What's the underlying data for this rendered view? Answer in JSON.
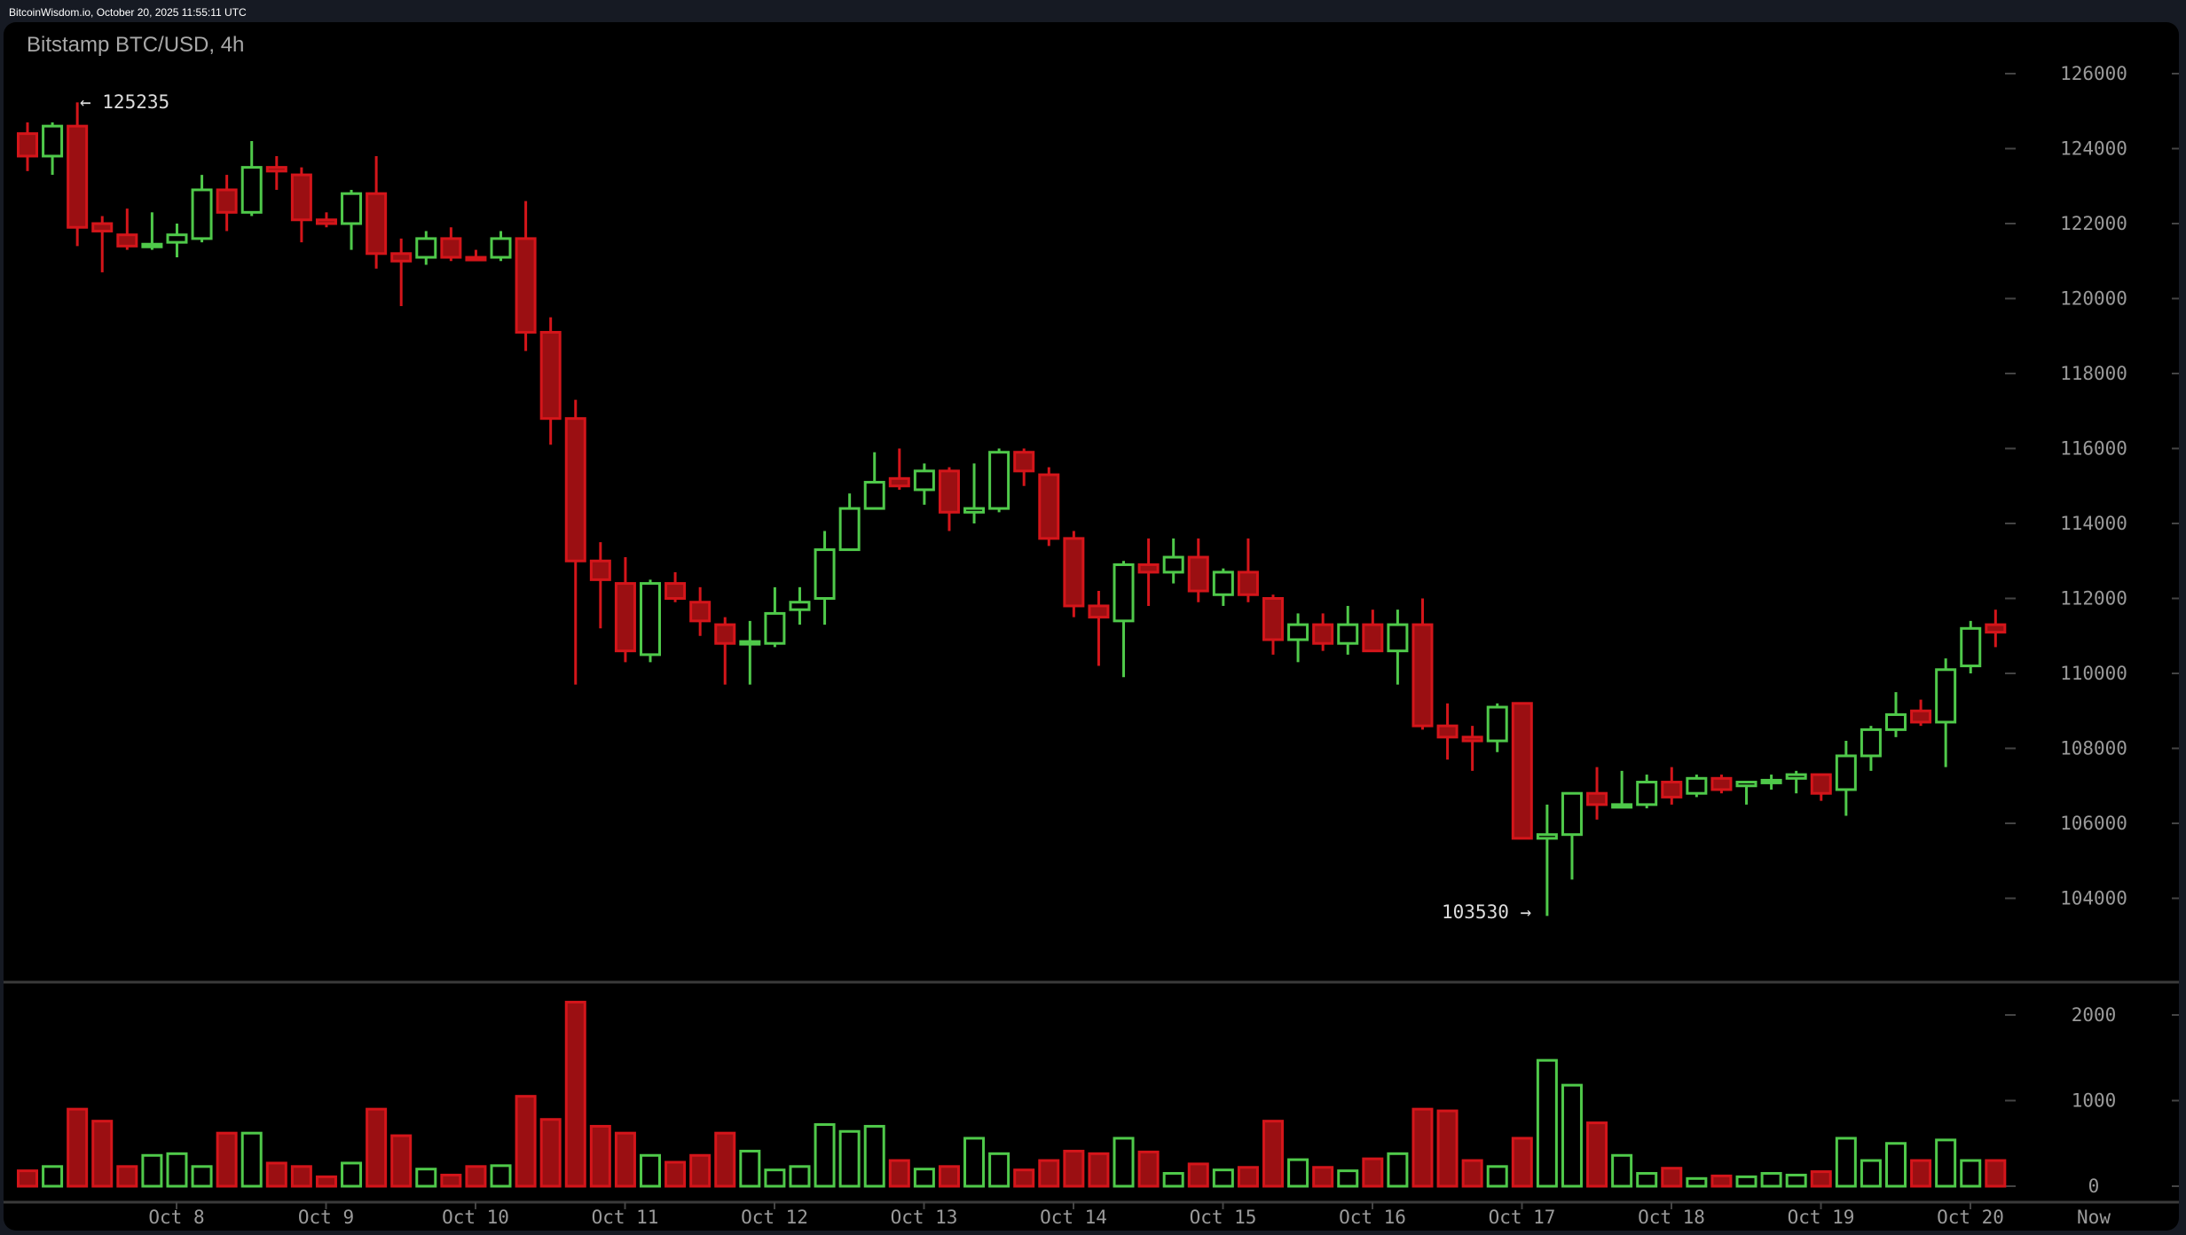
{
  "header": {
    "source_line": "BitcoinWisdom.io, October 20, 2025 11:55:11 UTC"
  },
  "chart": {
    "title": "Bitstamp BTC/USD, 4h",
    "high_annotation": "← 125235",
    "low_annotation": "103530 →",
    "price_axis_labels": [
      "126000",
      "124000",
      "122000",
      "120000",
      "118000",
      "116000",
      "114000",
      "112000",
      "110000",
      "108000",
      "106000",
      "104000"
    ],
    "volume_axis_labels": [
      "2000",
      "1000",
      "0"
    ],
    "date_labels": [
      "Oct 8",
      "Oct 9",
      "Oct 10",
      "Oct 11",
      "Oct 12",
      "Oct 13",
      "Oct 14",
      "Oct 15",
      "Oct 16",
      "Oct 17",
      "Oct 18",
      "Oct 19",
      "Oct 20",
      "Now"
    ]
  },
  "colors": {
    "up": "#4fc94a",
    "down_fill": "#9b0f12",
    "down_stroke": "#d4151a",
    "frame": "#161a23",
    "panel": "#000000",
    "axis_text": "#9a9a9a"
  },
  "chart_data": {
    "type": "candlestick",
    "title": "Bitstamp BTC/USD, 4h",
    "interval": "4h",
    "xlabel": "",
    "ylabel": "USD",
    "ylim": [
      103000,
      126500
    ],
    "volume_ylim": [
      0,
      2200
    ],
    "x_ticks": [
      "Oct 8",
      "Oct 9",
      "Oct 10",
      "Oct 11",
      "Oct 12",
      "Oct 13",
      "Oct 14",
      "Oct 15",
      "Oct 16",
      "Oct 17",
      "Oct 18",
      "Oct 19",
      "Oct 20",
      "Now"
    ],
    "annotations": [
      {
        "label": "125235",
        "type": "high"
      },
      {
        "label": "103530",
        "type": "low"
      }
    ],
    "ohlcv": [
      [
        124400,
        124700,
        123400,
        123800,
        180
      ],
      [
        123800,
        124700,
        123300,
        124600,
        230
      ],
      [
        124600,
        125235,
        121400,
        121900,
        900
      ],
      [
        122000,
        122200,
        120700,
        121800,
        760
      ],
      [
        121700,
        122400,
        121300,
        121400,
        230
      ],
      [
        121400,
        122300,
        121300,
        121450,
        360
      ],
      [
        121500,
        122000,
        121100,
        121700,
        380
      ],
      [
        121600,
        123300,
        121500,
        122900,
        230
      ],
      [
        122900,
        123300,
        121800,
        122300,
        620
      ],
      [
        122300,
        124200,
        122200,
        123500,
        620
      ],
      [
        123500,
        123800,
        122900,
        123400,
        270
      ],
      [
        123300,
        123500,
        121500,
        122100,
        230
      ],
      [
        122100,
        122300,
        121900,
        122000,
        110
      ],
      [
        122000,
        122900,
        121300,
        122800,
        270
      ],
      [
        122800,
        123800,
        120800,
        121200,
        900
      ],
      [
        121200,
        121600,
        119800,
        121000,
        590
      ],
      [
        121100,
        121800,
        120900,
        121600,
        200
      ],
      [
        121600,
        121900,
        121000,
        121100,
        130
      ],
      [
        121100,
        121300,
        121000,
        121050,
        230
      ],
      [
        121100,
        121800,
        121000,
        121600,
        240
      ],
      [
        121600,
        122600,
        118600,
        119100,
        1050
      ],
      [
        119100,
        119500,
        116100,
        116800,
        780
      ],
      [
        116800,
        117300,
        109700,
        113000,
        2150
      ],
      [
        113000,
        113500,
        111200,
        112500,
        700
      ],
      [
        112400,
        113100,
        110300,
        110600,
        620
      ],
      [
        110500,
        112500,
        110300,
        112400,
        360
      ],
      [
        112400,
        112700,
        111900,
        112000,
        280
      ],
      [
        111900,
        112300,
        111000,
        111400,
        360
      ],
      [
        111300,
        111500,
        109700,
        110800,
        620
      ],
      [
        110800,
        111400,
        109700,
        110850,
        410
      ],
      [
        110800,
        112300,
        110700,
        111600,
        190
      ],
      [
        111700,
        112300,
        111300,
        111900,
        230
      ],
      [
        112000,
        113800,
        111300,
        113300,
        720
      ],
      [
        113300,
        114800,
        113300,
        114400,
        640
      ],
      [
        114400,
        115900,
        114400,
        115100,
        700
      ],
      [
        115200,
        116000,
        114900,
        115000,
        300
      ],
      [
        114900,
        115600,
        114500,
        115400,
        200
      ],
      [
        115400,
        115500,
        113800,
        114300,
        230
      ],
      [
        114300,
        115600,
        114000,
        114400,
        560
      ],
      [
        114400,
        116000,
        114300,
        115900,
        380
      ],
      [
        115900,
        116000,
        115000,
        115400,
        190
      ],
      [
        115300,
        115500,
        113400,
        113600,
        300
      ],
      [
        113600,
        113800,
        111500,
        111800,
        410
      ],
      [
        111800,
        112200,
        110200,
        111500,
        380
      ],
      [
        111400,
        113000,
        109900,
        112900,
        560
      ],
      [
        112900,
        113600,
        111800,
        112700,
        400
      ],
      [
        112700,
        113600,
        112400,
        113100,
        150
      ],
      [
        113100,
        113600,
        111900,
        112200,
        260
      ],
      [
        112100,
        112800,
        111800,
        112700,
        190
      ],
      [
        112700,
        113600,
        111900,
        112100,
        220
      ],
      [
        112000,
        112100,
        110500,
        110900,
        760
      ],
      [
        110900,
        111600,
        110300,
        111300,
        310
      ],
      [
        111300,
        111600,
        110600,
        110800,
        220
      ],
      [
        110800,
        111800,
        110500,
        111300,
        180
      ],
      [
        111300,
        111700,
        110600,
        110600,
        320
      ],
      [
        110600,
        111700,
        109700,
        111300,
        380
      ],
      [
        111300,
        112000,
        108500,
        108600,
        900
      ],
      [
        108600,
        109200,
        107700,
        108300,
        880
      ],
      [
        108300,
        108600,
        107400,
        108200,
        300
      ],
      [
        108200,
        109200,
        107900,
        109100,
        230
      ],
      [
        109200,
        109200,
        105600,
        105600,
        560
      ],
      [
        105600,
        106500,
        103530,
        105700,
        1470
      ],
      [
        105700,
        106800,
        104500,
        106800,
        1180
      ],
      [
        106800,
        107500,
        106100,
        106500,
        740
      ],
      [
        106500,
        107400,
        106400,
        106500,
        360
      ],
      [
        106500,
        107300,
        106400,
        107100,
        150
      ],
      [
        107100,
        107500,
        106500,
        106700,
        210
      ],
      [
        106800,
        107300,
        106700,
        107200,
        90
      ],
      [
        107200,
        107300,
        106800,
        106900,
        120
      ],
      [
        107000,
        107050,
        106500,
        107100,
        110
      ],
      [
        107100,
        107300,
        106900,
        107150,
        150
      ],
      [
        107200,
        107400,
        106800,
        107300,
        130
      ],
      [
        107300,
        107300,
        106600,
        106800,
        170
      ],
      [
        106900,
        108200,
        106200,
        107800,
        560
      ],
      [
        107800,
        108600,
        107400,
        108500,
        300
      ],
      [
        108500,
        109500,
        108300,
        108900,
        500
      ],
      [
        109000,
        109300,
        108600,
        108700,
        300
      ],
      [
        108700,
        110400,
        107500,
        110100,
        540
      ],
      [
        110200,
        111400,
        110000,
        111200,
        300
      ],
      [
        111300,
        111700,
        110700,
        111100,
        300
      ]
    ]
  }
}
